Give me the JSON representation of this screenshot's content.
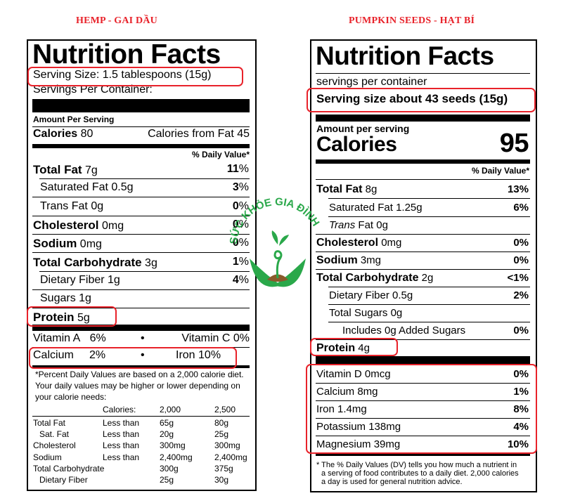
{
  "headings": {
    "left": "HEMP - GAI DẦU",
    "right": "PUMPKIN SEEDS - HẠT BÍ"
  },
  "hemp": {
    "title": "Nutrition Facts",
    "serving_size": "Serving Size: 1.5 tablespoons (15g)",
    "servings_per_container": "Servings Per Container:",
    "amount_per_serving": "Amount Per Serving",
    "calories_label": "Calories",
    "calories_value": "80",
    "calories_from_fat": "Calories from Fat 45",
    "daily_value_header": "% Daily Value*",
    "rows": [
      {
        "label": "Total Fat",
        "amount": "7g",
        "dv": "11",
        "bold": true
      },
      {
        "label": "Saturated Fat",
        "amount": "0.5g",
        "dv": "3",
        "bold": false
      },
      {
        "label": "Trans Fat",
        "amount": "0g",
        "dv": "0",
        "bold": false
      },
      {
        "label": "Cholesterol",
        "amount": "0mg",
        "dv": "0",
        "bold": true
      },
      {
        "label": "Sodium",
        "amount": "0mg",
        "dv": "0",
        "bold": true
      },
      {
        "label": "Total Carbohydrate",
        "amount": "3g",
        "dv": "1",
        "bold": true
      },
      {
        "label": "Dietary Fiber",
        "amount": "1g",
        "dv": "4",
        "bold": false
      },
      {
        "label": "Sugars",
        "amount": "1g",
        "dv": "",
        "bold": false
      },
      {
        "label": "Protein",
        "amount": "5g",
        "dv": "",
        "bold": true
      }
    ],
    "vitamin_a": "Vitamin A",
    "vitamin_a_dv": "6%",
    "vitamin_c": "Vitamin C 0%",
    "calcium": "Calcium",
    "calcium_dv": "2%",
    "iron": "Iron 10%",
    "bullet": "•",
    "footnote": [
      "*Percent Daily Values are based on a 2,000 calorie diet.",
      "Your daily values may be higher or lower depending on",
      "your calorie needs:"
    ],
    "table_header": {
      "calories": "Calories:",
      "c1": "2,000",
      "c2": "2,500"
    },
    "table_rows": [
      {
        "name": "Total Fat",
        "cond": "Less than",
        "a": "65g",
        "b": "80g"
      },
      {
        "name": "Sat. Fat",
        "cond": "Less than",
        "a": "20g",
        "b": "25g"
      },
      {
        "name": "Cholesterol",
        "cond": "Less than",
        "a": "300mg",
        "b": "300mg"
      },
      {
        "name": "Sodium",
        "cond": "Less than",
        "a": "2,400mg",
        "b": "2,400mg"
      },
      {
        "name": "Total Carbohydrate",
        "cond": "",
        "a": "300g",
        "b": "375g"
      },
      {
        "name": "Dietary Fiber",
        "cond": "",
        "a": "25g",
        "b": "30g"
      }
    ]
  },
  "pumpkin": {
    "title": "Nutrition Facts",
    "servings_per_container": "servings per container",
    "serving_size": "Serving size about 43 seeds (15g)",
    "amount_per_serving": "Amount per serving",
    "calories_label": "Calories",
    "calories_value": "95",
    "daily_value_header": "% Daily Value*",
    "rows": [
      {
        "label": "Total Fat",
        "amount": "8g",
        "dv": "13%",
        "bold": true
      },
      {
        "label": "Saturated Fat",
        "amount": "1.25g",
        "dv": "6%",
        "bold": false
      },
      {
        "label": "Trans",
        "amount": "Fat 0g",
        "dv": "",
        "bold": false
      },
      {
        "label": "Cholesterol",
        "amount": "0mg",
        "dv": "0%",
        "bold": true
      },
      {
        "label": "Sodium",
        "amount": "3mg",
        "dv": "0%",
        "bold": true
      },
      {
        "label": "Total Carbohydrate",
        "amount": "2g",
        "dv": "<1%",
        "bold": true
      },
      {
        "label": "Dietary Fiber",
        "amount": "0.5g",
        "dv": "2%",
        "bold": false
      },
      {
        "label": "Total Sugars",
        "amount": "0g",
        "dv": "",
        "bold": false
      },
      {
        "label": "Includes 0g Added Sugars",
        "amount": "",
        "dv": "0%",
        "bold": false
      },
      {
        "label": "Protein",
        "amount": "4g",
        "dv": "",
        "bold": true
      }
    ],
    "minerals": [
      {
        "label": "Vitamin D 0mcg",
        "dv": "0%"
      },
      {
        "label": "Calcium 8mg",
        "dv": "1%"
      },
      {
        "label": "Iron 1.4mg",
        "dv": "8%"
      },
      {
        "label": "Potassium 138mg",
        "dv": "4%"
      },
      {
        "label": "Magnesium 39mg",
        "dv": "10%"
      }
    ],
    "footnote": [
      "* The % Daily Values (DV) tells you how much a nutrient in",
      "a serving of food contributes to a daily diet. 2,000 calories",
      "a day is used for general nutrition advice."
    ]
  },
  "watermark": {
    "text": "SỨC KHỎE GIA ĐÌNH",
    "color": "#2aa84a"
  },
  "colors": {
    "highlight": "#e8222a",
    "brand_green": "#2aa84a",
    "soil": "#8a5a2b"
  }
}
